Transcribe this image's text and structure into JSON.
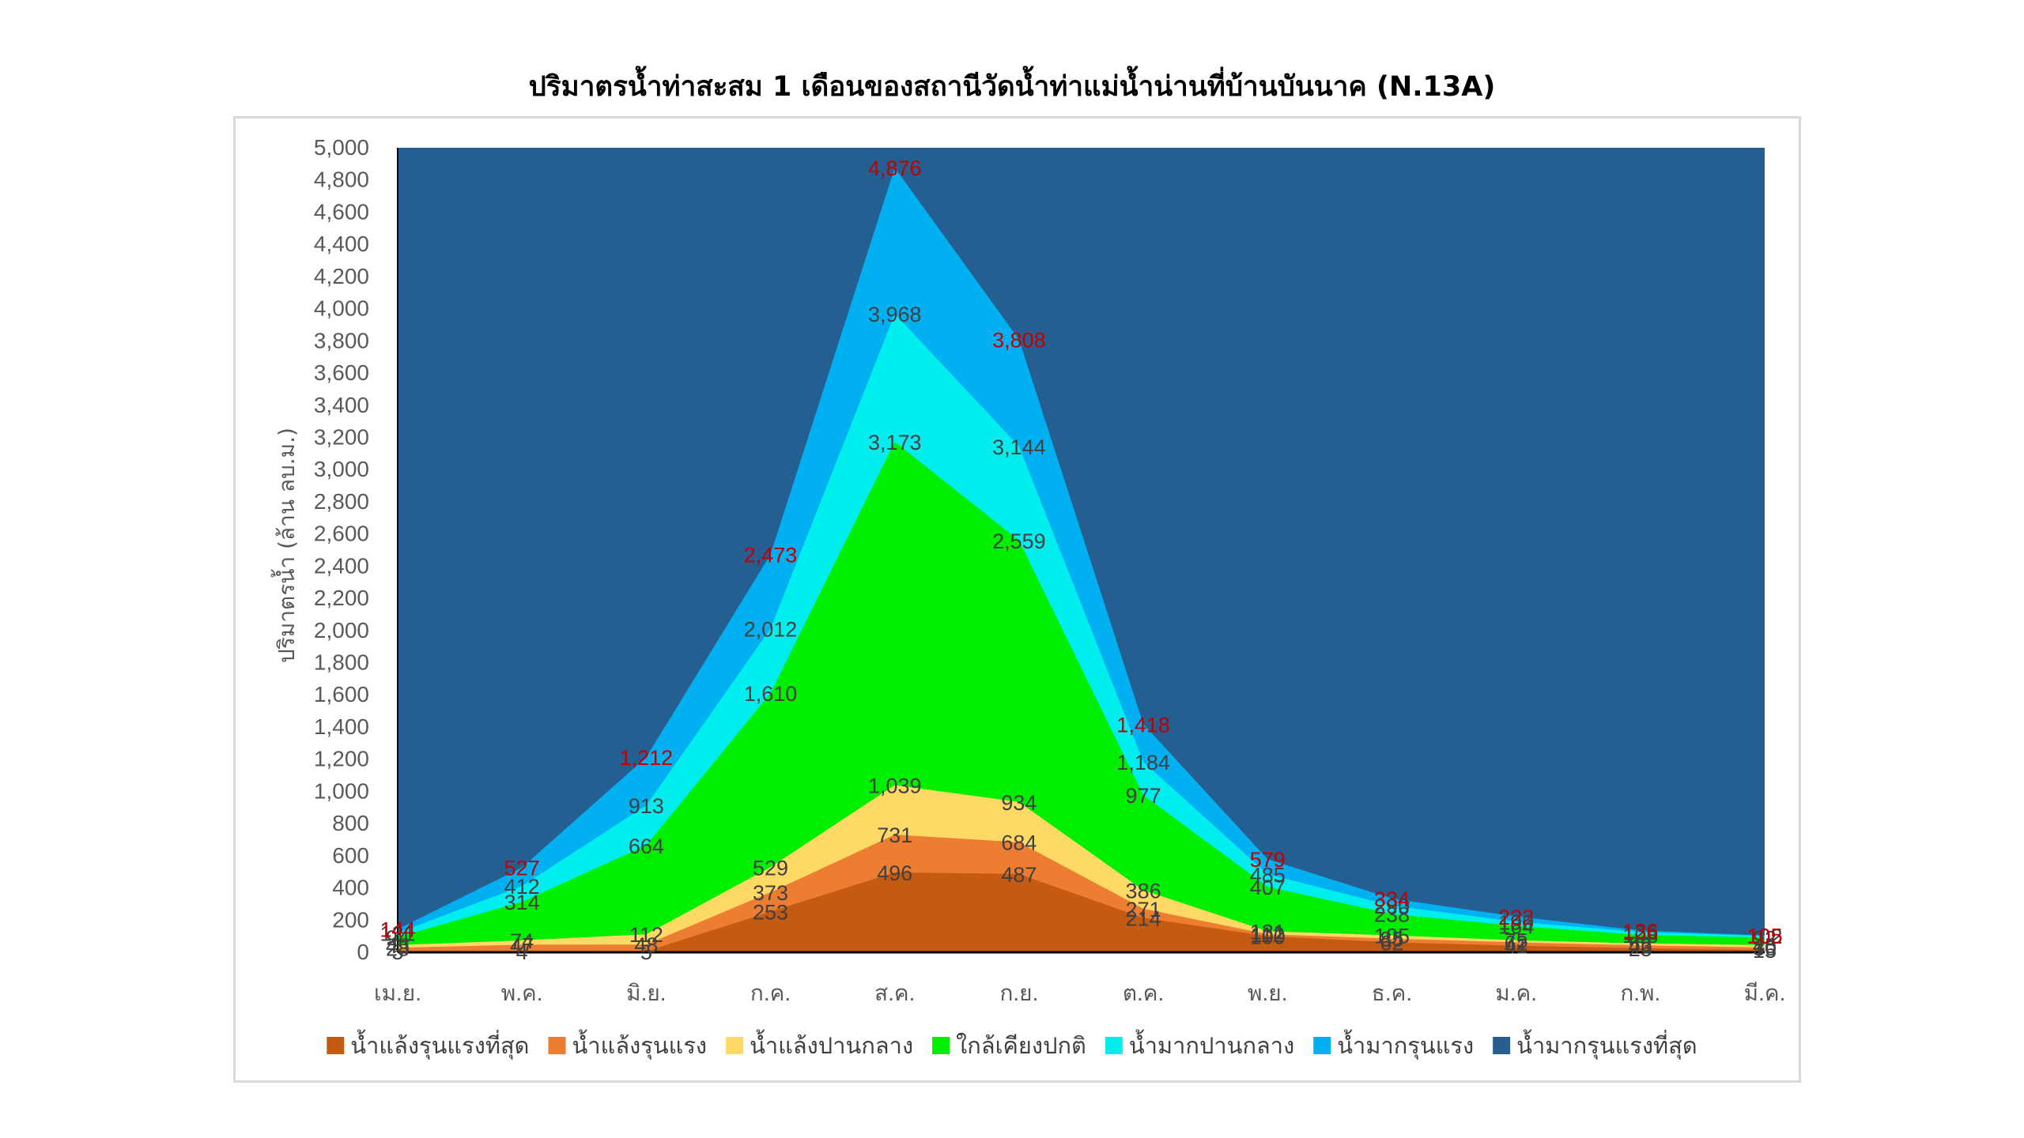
{
  "chart_data": {
    "type": "area",
    "title": "ปริมาตรน้ำท่าสะสม 1 เดือนของสถานีวัดน้ำท่าแม่น้ำน่านที่บ้านบันนาค (N.13A)",
    "ylabel": "ปริมาตรน้ำ (ล้าน ลบ.ม.)",
    "xlabel": "",
    "ylim": [
      0,
      5000
    ],
    "ytick_step": 200,
    "grid": false,
    "legend_position": "bottom",
    "categories": [
      "เม.ย.",
      "พ.ค.",
      "มิ.ย.",
      "ก.ค.",
      "ส.ค.",
      "ก.ย.",
      "ต.ค.",
      "พ.ย.",
      "ธ.ค.",
      "ม.ค.",
      "ก.พ.",
      "มี.ค."
    ],
    "series": [
      {
        "name": "น้ำแล้งรุนแรงที่สุด",
        "color": "#c55a11",
        "values": [
          5,
          4,
          5,
          253,
          496,
          487,
          214,
          100,
          62,
          41,
          25,
          15
        ],
        "labels": [
          "5",
          "4",
          "5",
          "253",
          "496",
          "487",
          "214",
          "100",
          "62",
          "41",
          "25",
          "15"
        ]
      },
      {
        "name": "น้ำแล้งรุนแรง",
        "color": "#ed7d31",
        "values": [
          28,
          47,
          48,
          373,
          731,
          684,
          271,
          112,
          85,
          62,
          43,
          30
        ],
        "labels": [
          "28",
          "47",
          "48",
          "373",
          "731",
          "684",
          "271",
          "112",
          "85",
          "62",
          "43",
          "30"
        ]
      },
      {
        "name": "น้ำแล้งปานกลาง",
        "color": "#ffd966",
        "values": [
          45,
          74,
          112,
          529,
          1039,
          934,
          386,
          131,
          105,
          75,
          55,
          45
        ],
        "labels": [
          "45",
          "74",
          "112",
          "529",
          "1,039",
          "934",
          "386",
          "131",
          "105",
          "75",
          "55",
          "45"
        ]
      },
      {
        "name": "ใกล้เคียงปกติ",
        "color": "#00ee00",
        "values": [
          94,
          314,
          664,
          1610,
          3173,
          2559,
          977,
          407,
          238,
          164,
          108,
          92
        ],
        "labels": [
          "94",
          "314",
          "664",
          "1,610",
          "3,173",
          "2,559",
          "977",
          "407",
          "238",
          "164",
          "108",
          "92"
        ]
      },
      {
        "name": "น้ำมากปานกลาง",
        "color": "#00eeee",
        "values": [
          121,
          412,
          913,
          2012,
          3968,
          3144,
          1184,
          485,
          290,
          190,
          126,
          102
        ],
        "labels": [
          "121",
          "412",
          "913",
          "2,012",
          "3,968",
          "3,144",
          "1,184",
          "485",
          "290",
          "190",
          "126",
          "102"
        ]
      },
      {
        "name": "น้ำมากรุนแรง",
        "color": "#00b0f0",
        "values": [
          144,
          527,
          1212,
          2473,
          4876,
          3808,
          1418,
          579,
          334,
          222,
          136,
          105
        ],
        "labels": [
          "144",
          "527",
          "1,212",
          "2,473",
          "4,876",
          "3,808",
          "1,418",
          "579",
          "334",
          "222",
          "136",
          "105"
        ]
      },
      {
        "name": "น้ำมากรุนแรงที่สุด",
        "color": "#255e91",
        "values": [
          5000,
          5000,
          5000,
          5000,
          5000,
          5000,
          5000,
          5000,
          5000,
          5000,
          5000,
          5000
        ],
        "labels": []
      }
    ]
  }
}
